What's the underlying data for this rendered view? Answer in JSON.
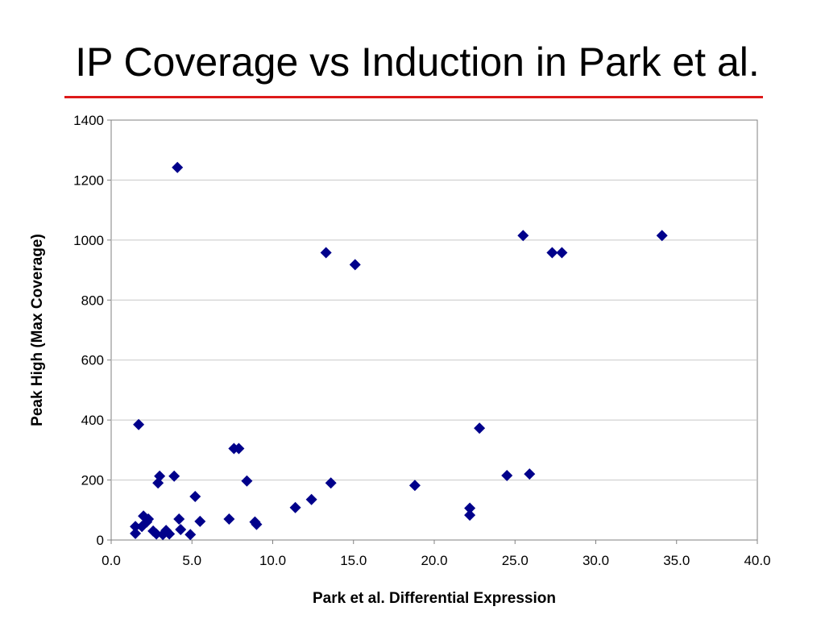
{
  "slide": {
    "title": "IP Coverage vs Induction in Park et al.",
    "rule_color": "#dd1a1a"
  },
  "chart_data": {
    "type": "scatter",
    "title": "",
    "xlabel": "Park et al. Differential Expression",
    "ylabel": "Peak High (Max Coverage)",
    "xlim": [
      0,
      40
    ],
    "ylim": [
      0,
      1400
    ],
    "x_ticks": [
      "0.0",
      "5.0",
      "10.0",
      "15.0",
      "20.0",
      "25.0",
      "30.0",
      "35.0",
      "40.0"
    ],
    "y_ticks": [
      "0",
      "200",
      "400",
      "600",
      "800",
      "1000",
      "1200",
      "1400"
    ],
    "grid": "horizontal",
    "legend": "none",
    "marker": "diamond",
    "marker_color": "#00008b",
    "series": [
      {
        "points": [
          [
            4.1,
            1242
          ],
          [
            13.3,
            958
          ],
          [
            15.1,
            918
          ],
          [
            25.5,
            1015
          ],
          [
            27.3,
            958
          ],
          [
            27.9,
            958
          ],
          [
            34.1,
            1015
          ],
          [
            1.7,
            385
          ],
          [
            22.8,
            373
          ],
          [
            7.6,
            305
          ],
          [
            7.9,
            305
          ],
          [
            3.0,
            213
          ],
          [
            3.9,
            213
          ],
          [
            2.9,
            190
          ],
          [
            8.4,
            197
          ],
          [
            13.6,
            190
          ],
          [
            18.8,
            182
          ],
          [
            24.5,
            215
          ],
          [
            25.9,
            220
          ],
          [
            5.2,
            145
          ],
          [
            11.4,
            108
          ],
          [
            12.4,
            135
          ],
          [
            22.2,
            106
          ],
          [
            22.2,
            83
          ],
          [
            7.3,
            70
          ],
          [
            8.9,
            60
          ],
          [
            9.0,
            52
          ],
          [
            5.5,
            62
          ],
          [
            4.2,
            70
          ],
          [
            1.5,
            45
          ],
          [
            1.9,
            45
          ],
          [
            2.0,
            80
          ],
          [
            2.3,
            70
          ],
          [
            2.2,
            60
          ],
          [
            1.5,
            22
          ],
          [
            2.6,
            30
          ],
          [
            2.8,
            20
          ],
          [
            3.2,
            18
          ],
          [
            3.4,
            32
          ],
          [
            3.6,
            20
          ],
          [
            4.3,
            35
          ],
          [
            4.9,
            18
          ]
        ]
      }
    ]
  }
}
